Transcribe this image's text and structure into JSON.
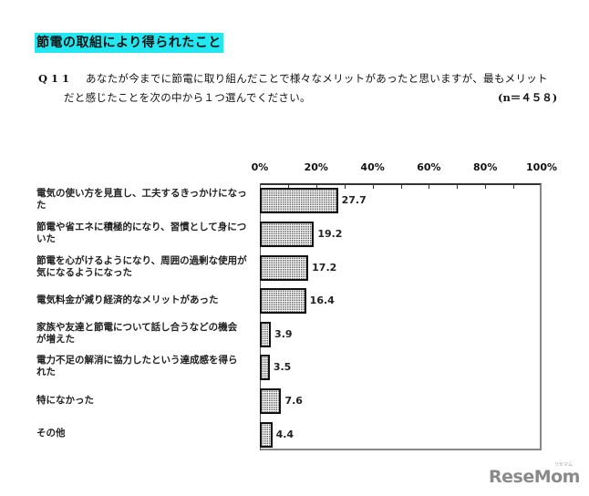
{
  "header": {
    "title": "節電の取組により得られたこと",
    "title_bg": "#22e6f0"
  },
  "question": {
    "number": "Q11",
    "line1": "あなたが今までに節電に取り組んだことで様々なメリットがあったと思いますが、最もメリット",
    "line2": "だと感じたことを次の中から１つ選んでください。",
    "n_label": "(n＝４５８)"
  },
  "chart_data": {
    "type": "bar",
    "orientation": "horizontal",
    "title": "節電の取組により得られたこと",
    "xlabel": "",
    "ylabel": "",
    "xlim": [
      0,
      100
    ],
    "x_ticks": [
      "0%",
      "20%",
      "40%",
      "60%",
      "80%",
      "100%"
    ],
    "grid": false,
    "legend": null,
    "categories": [
      "電気の使い方を見直し、工夫するきっかけになった",
      "節電や省エネに積極的になり、習慣として身についた",
      "節電を心がけるようになり、周囲の過剰な使用が気になるようになった",
      "電気料金が減り経済的なメリットがあった",
      "家族や友達と節電について話し合うなどの機会が増えた",
      "電力不足の解消に協力したという達成感を得られた",
      "特になかった",
      "その他"
    ],
    "values": [
      27.7,
      19.2,
      17.2,
      16.4,
      3.9,
      3.5,
      7.6,
      4.4
    ],
    "value_labels": [
      "27.7",
      "19.2",
      "17.2",
      "16.4",
      "3.9",
      "3.5",
      "7.6",
      "4.4"
    ],
    "n": 458
  },
  "labels": {
    "rows": [
      {
        "line1": "電気の使い方を見直し、工夫するきっかけになっ",
        "line2": "た"
      },
      {
        "line1": "節電や省エネに積極的になり、習慣として身につ",
        "line2": "いた"
      },
      {
        "line1": "節電を心がけるようになり、周囲の過剰な使用が",
        "line2": "気になるようになった"
      },
      {
        "line1": "電気料金が減り経済的なメリットがあった",
        "line2": ""
      },
      {
        "line1": "家族や友達と節電について話し合うなどの機会",
        "line2": "が増えた"
      },
      {
        "line1": "電力不足の解消に協力したという達成感を得ら",
        "line2": "れた"
      },
      {
        "line1": "特になかった",
        "line2": ""
      },
      {
        "line1": "その他",
        "line2": ""
      }
    ]
  },
  "watermark": {
    "logo": "ReseMom",
    "sub": "リセマム"
  }
}
